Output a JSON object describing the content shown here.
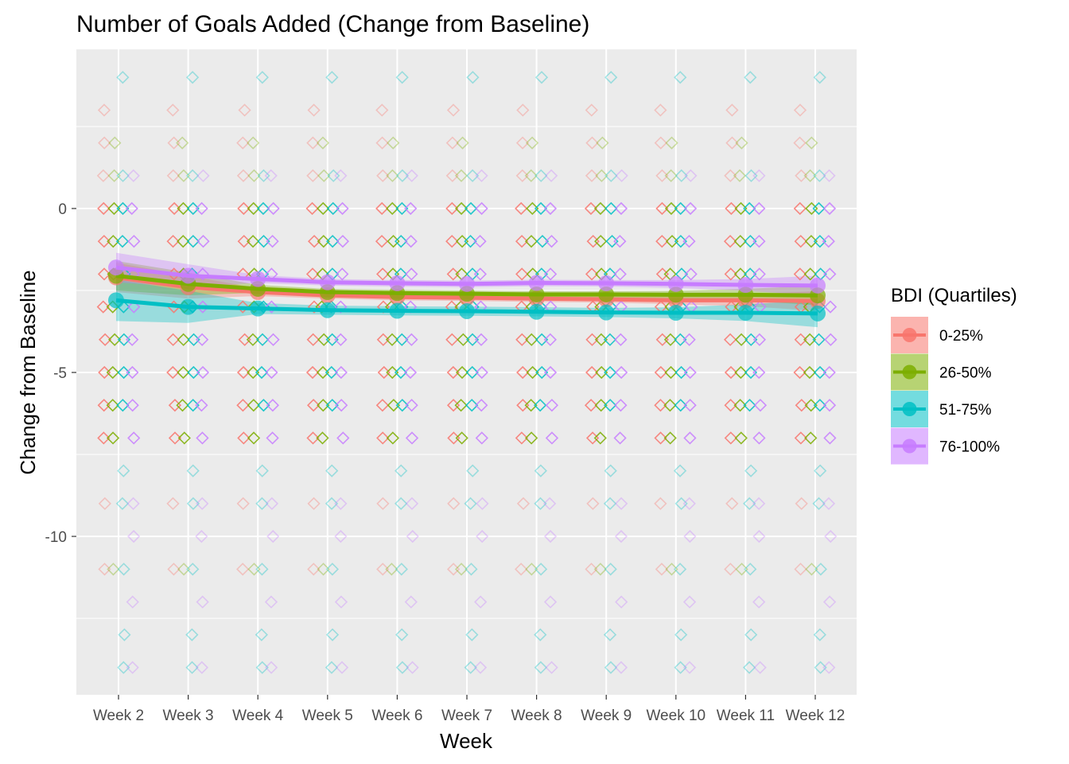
{
  "chart_data": {
    "type": "scatter",
    "title": "Number of Goals Added (Change from Baseline)",
    "xlabel": "Week",
    "ylabel": "Change from Baseline",
    "categories": [
      "Week 2",
      "Week 3",
      "Week 4",
      "Week 5",
      "Week 6",
      "Week 7",
      "Week 8",
      "Week 9",
      "Week 10",
      "Week 11",
      "Week 12"
    ],
    "ylim": [
      -14.8,
      5.3
    ],
    "yticks": [
      0,
      -5,
      -10
    ],
    "ytick_labels": [
      "0",
      "-5",
      "-10"
    ],
    "grid": true,
    "legend": {
      "title": "BDI (Quartiles)",
      "position": "right"
    },
    "series": [
      {
        "name": "0-25%",
        "color": "#F8766D",
        "points": [
          3,
          2,
          1,
          0,
          -1,
          -2,
          -3,
          -4,
          -5,
          -6,
          -7,
          -9,
          -11
        ],
        "mean": [
          -2.1,
          -2.4,
          -2.55,
          -2.65,
          -2.7,
          -2.72,
          -2.75,
          -2.77,
          -2.8,
          -2.8,
          -2.82
        ]
      },
      {
        "name": "26-50%",
        "color": "#7CAE00",
        "points": [
          2,
          1,
          0,
          -1,
          -2,
          -3,
          -4,
          -5,
          -6,
          -7,
          -11
        ],
        "mean": [
          -2.05,
          -2.3,
          -2.45,
          -2.55,
          -2.58,
          -2.6,
          -2.62,
          -2.62,
          -2.63,
          -2.63,
          -2.65
        ]
      },
      {
        "name": "51-75%",
        "color": "#00BFC4",
        "points": [
          4,
          1,
          0,
          -1,
          -2,
          -3,
          -4,
          -5,
          -6,
          -8,
          -9,
          -11,
          -13,
          -14
        ],
        "mean": [
          -2.8,
          -3.0,
          -3.05,
          -3.1,
          -3.12,
          -3.13,
          -3.15,
          -3.17,
          -3.18,
          -3.18,
          -3.2
        ]
      },
      {
        "name": "76-100%",
        "color": "#C77CFF",
        "points": [
          1,
          0,
          -1,
          -2,
          -3,
          -4,
          -5,
          -6,
          -7,
          -9,
          -10,
          -12,
          -14
        ],
        "mean": [
          -1.8,
          -2.05,
          -2.15,
          -2.25,
          -2.28,
          -2.3,
          -2.27,
          -2.28,
          -2.3,
          -2.33,
          -2.35
        ]
      }
    ]
  }
}
